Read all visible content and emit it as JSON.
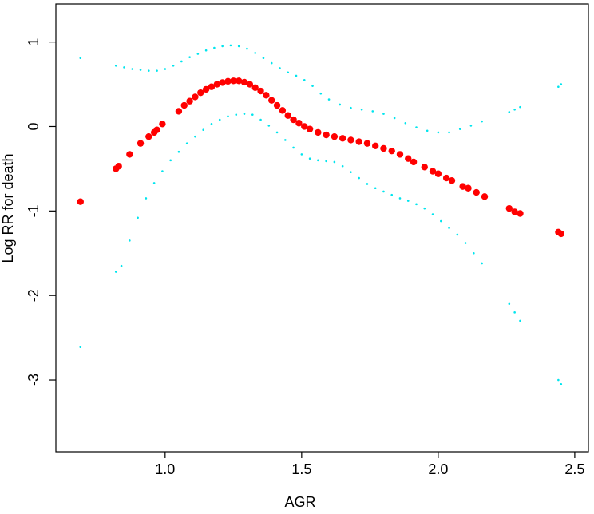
{
  "chart_data": {
    "type": "scatter",
    "title": "",
    "xlabel": "AGR",
    "ylabel": "Log RR for death",
    "xlim": [
      0.6,
      2.55
    ],
    "ylim": [
      -3.85,
      1.45
    ],
    "x_ticks": [
      1.0,
      1.5,
      2.0,
      2.5
    ],
    "x_tick_labels": [
      "1.0",
      "1.5",
      "2.0",
      "2.5"
    ],
    "y_ticks": [
      1,
      0,
      -1,
      -2,
      -3
    ],
    "y_tick_labels": [
      "1",
      "0",
      "-1",
      "-2",
      "-3"
    ],
    "grid": false,
    "legend": "none",
    "colors": {
      "estimate": "#ff0000",
      "ci": "#00e5ee",
      "axis": "#000000"
    },
    "series": [
      {
        "role": "estimate",
        "x": [
          0.69,
          0.82,
          0.83,
          0.87,
          0.91,
          0.94,
          0.96,
          0.97,
          0.99,
          1.05,
          1.07,
          1.09,
          1.11,
          1.13,
          1.15,
          1.17,
          1.19,
          1.21,
          1.23,
          1.25,
          1.27,
          1.29,
          1.31,
          1.33,
          1.35,
          1.37,
          1.39,
          1.41,
          1.43,
          1.45,
          1.47,
          1.49,
          1.51,
          1.53,
          1.56,
          1.59,
          1.62,
          1.65,
          1.68,
          1.71,
          1.74,
          1.77,
          1.8,
          1.83,
          1.86,
          1.89,
          1.91,
          1.95,
          1.98,
          2.0,
          2.03,
          2.05,
          2.09,
          2.11,
          2.14,
          2.17,
          2.26,
          2.28,
          2.3,
          2.44,
          2.45
        ],
        "y": [
          -0.89,
          -0.5,
          -0.47,
          -0.33,
          -0.2,
          -0.12,
          -0.07,
          -0.04,
          0.03,
          0.18,
          0.25,
          0.3,
          0.35,
          0.4,
          0.44,
          0.47,
          0.5,
          0.52,
          0.535,
          0.54,
          0.54,
          0.525,
          0.5,
          0.46,
          0.42,
          0.37,
          0.31,
          0.25,
          0.19,
          0.13,
          0.08,
          0.04,
          0.0,
          -0.03,
          -0.07,
          -0.1,
          -0.12,
          -0.14,
          -0.16,
          -0.18,
          -0.2,
          -0.23,
          -0.26,
          -0.29,
          -0.33,
          -0.38,
          -0.42,
          -0.48,
          -0.53,
          -0.56,
          -0.61,
          -0.64,
          -0.71,
          -0.73,
          -0.78,
          -0.83,
          -0.97,
          -1.01,
          -1.03,
          -1.25,
          -1.27
        ]
      },
      {
        "role": "upper-ci",
        "x": [
          0.69,
          0.82,
          0.85,
          0.88,
          0.91,
          0.94,
          0.97,
          1.0,
          1.03,
          1.06,
          1.09,
          1.12,
          1.15,
          1.18,
          1.21,
          1.24,
          1.27,
          1.3,
          1.33,
          1.36,
          1.39,
          1.42,
          1.45,
          1.48,
          1.51,
          1.54,
          1.57,
          1.6,
          1.64,
          1.68,
          1.72,
          1.76,
          1.8,
          1.84,
          1.88,
          1.92,
          1.96,
          2.0,
          2.04,
          2.08,
          2.12,
          2.16,
          2.26,
          2.28,
          2.3,
          2.44,
          2.45
        ],
        "y": [
          0.81,
          0.72,
          0.7,
          0.68,
          0.67,
          0.66,
          0.66,
          0.68,
          0.72,
          0.77,
          0.82,
          0.86,
          0.9,
          0.93,
          0.95,
          0.96,
          0.95,
          0.92,
          0.87,
          0.81,
          0.75,
          0.69,
          0.64,
          0.6,
          0.55,
          0.48,
          0.39,
          0.32,
          0.26,
          0.22,
          0.2,
          0.18,
          0.15,
          0.1,
          0.04,
          -0.01,
          -0.05,
          -0.07,
          -0.07,
          -0.03,
          0.01,
          0.06,
          0.17,
          0.2,
          0.23,
          0.47,
          0.5
        ]
      },
      {
        "role": "lower-ci",
        "x": [
          0.69,
          0.82,
          0.84,
          0.87,
          0.9,
          0.93,
          0.96,
          0.99,
          1.02,
          1.05,
          1.08,
          1.11,
          1.14,
          1.17,
          1.2,
          1.23,
          1.26,
          1.29,
          1.32,
          1.35,
          1.38,
          1.41,
          1.44,
          1.47,
          1.5,
          1.53,
          1.56,
          1.59,
          1.62,
          1.65,
          1.68,
          1.71,
          1.74,
          1.77,
          1.8,
          1.83,
          1.86,
          1.89,
          1.92,
          1.95,
          1.98,
          2.01,
          2.04,
          2.07,
          2.1,
          2.13,
          2.16,
          2.26,
          2.28,
          2.3,
          2.44,
          2.45
        ],
        "y": [
          -2.61,
          -1.72,
          -1.65,
          -1.35,
          -1.08,
          -0.85,
          -0.67,
          -0.53,
          -0.4,
          -0.3,
          -0.2,
          -0.12,
          -0.04,
          0.03,
          0.08,
          0.12,
          0.14,
          0.15,
          0.14,
          0.08,
          0.01,
          -0.07,
          -0.16,
          -0.25,
          -0.33,
          -0.38,
          -0.4,
          -0.41,
          -0.42,
          -0.47,
          -0.54,
          -0.61,
          -0.68,
          -0.73,
          -0.77,
          -0.81,
          -0.85,
          -0.88,
          -0.92,
          -0.97,
          -1.04,
          -1.12,
          -1.2,
          -1.28,
          -1.38,
          -1.5,
          -1.62,
          -2.1,
          -2.2,
          -2.3,
          -3.0,
          -3.05
        ]
      }
    ]
  }
}
